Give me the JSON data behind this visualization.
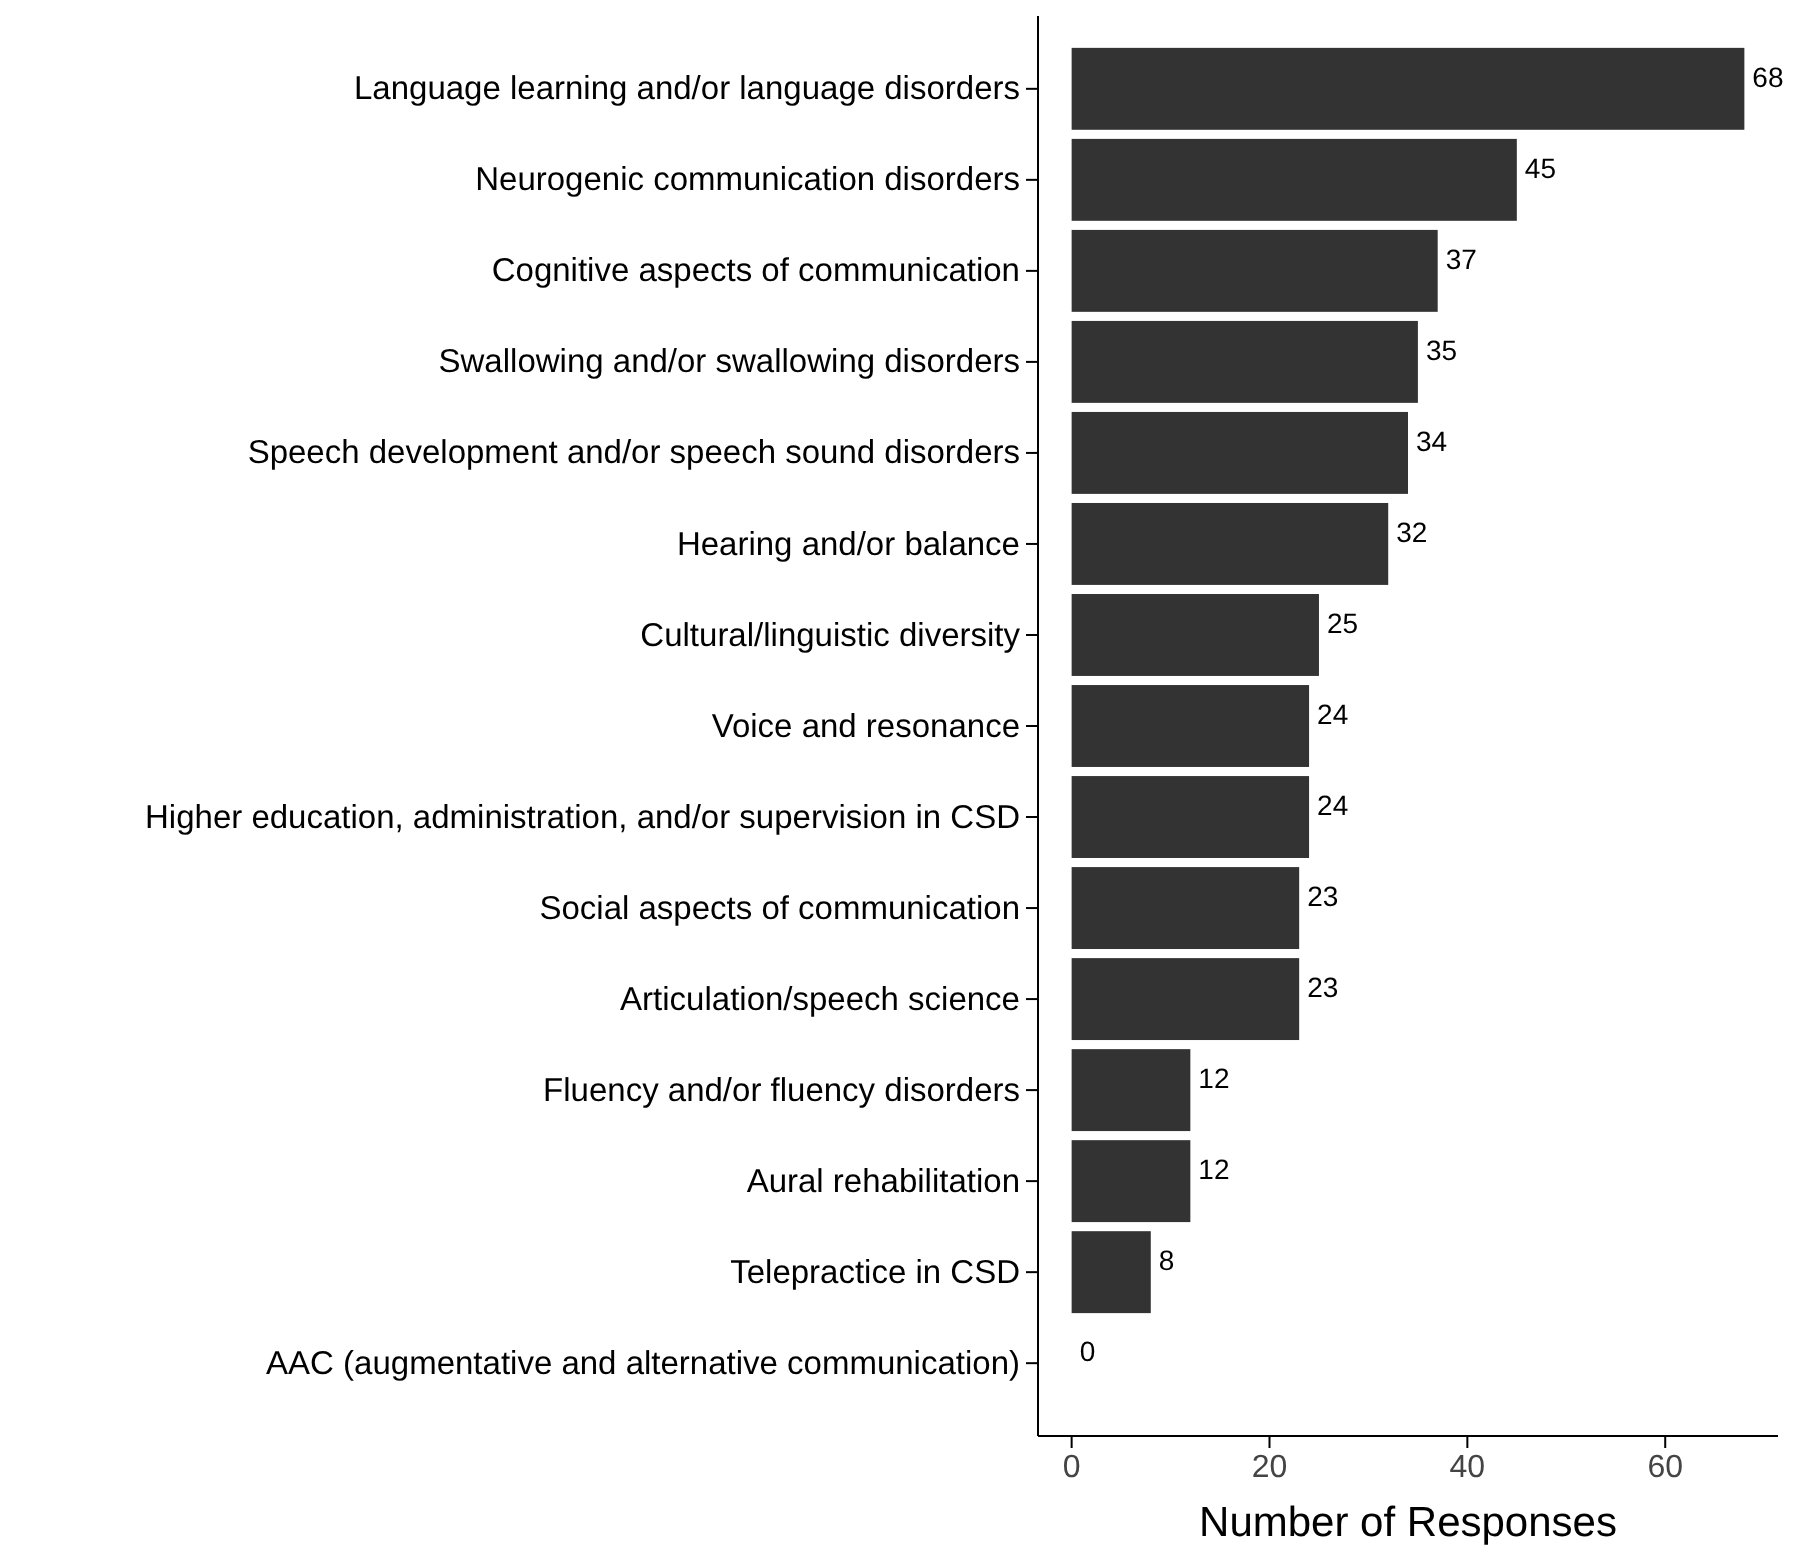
{
  "chart_data": {
    "type": "bar",
    "orientation": "horizontal",
    "xlabel": "Number of Responses",
    "categories": [
      "Language learning and/or language disorders",
      "Neurogenic communication disorders",
      "Cognitive aspects of communication",
      "Swallowing and/or swallowing disorders",
      "Speech development and/or speech sound disorders",
      "Hearing and/or balance",
      "Cultural/linguistic diversity",
      "Voice and resonance",
      "Higher education, administration, and/or supervision in CSD",
      "Social aspects of communication",
      "Articulation/speech science",
      "Fluency and/or fluency disorders",
      "Aural rehabilitation",
      "Telepractice in CSD",
      "AAC (augmentative and alternative communication)"
    ],
    "values": [
      68,
      45,
      37,
      35,
      34,
      32,
      25,
      24,
      24,
      23,
      23,
      12,
      12,
      8,
      0
    ],
    "color": "#333333",
    "xlim": [
      -3.4,
      71.4
    ],
    "xticks": [
      0,
      20,
      40,
      60
    ],
    "data_labels": true
  }
}
